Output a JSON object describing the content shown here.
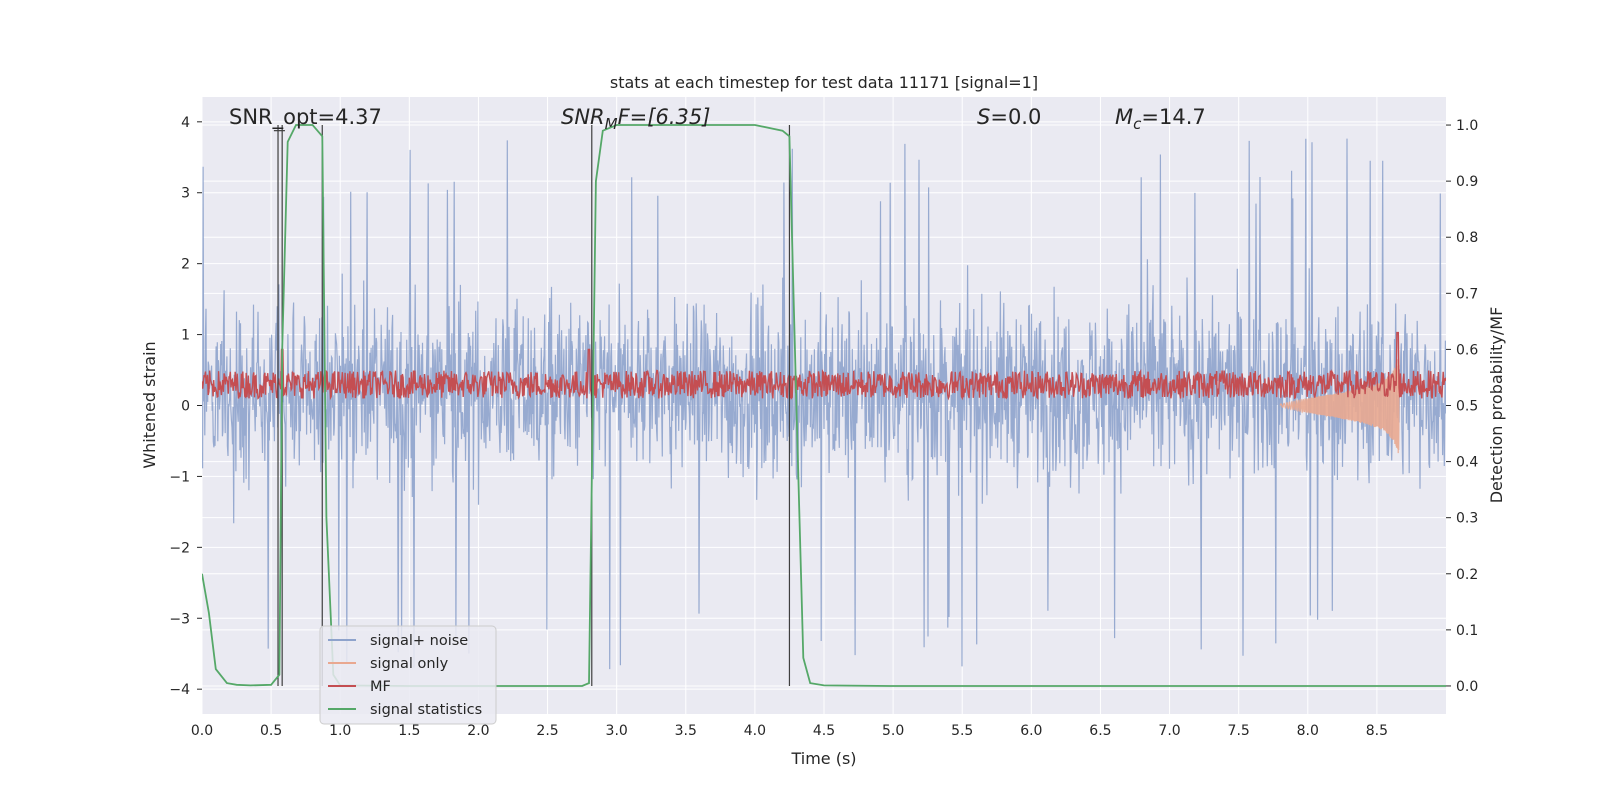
{
  "chart_data": {
    "type": "line",
    "title": "stats at each timestep for test data 11171 [signal=1]",
    "xlabel": "Time (s)",
    "ylabel": "Whitened strain",
    "y2label": "Detection probability/MF",
    "xlim": [
      0.0,
      9.0
    ],
    "ylim": [
      -4.35,
      4.35
    ],
    "y2lim": [
      -0.05,
      1.05
    ],
    "xticks": [
      "0.0",
      "0.5",
      "1.0",
      "1.5",
      "2.0",
      "2.5",
      "3.0",
      "3.5",
      "4.0",
      "4.5",
      "5.0",
      "5.5",
      "6.0",
      "6.5",
      "7.0",
      "7.5",
      "8.0",
      "8.5"
    ],
    "yticks": [
      "−4",
      "−3",
      "−2",
      "−1",
      "0",
      "1",
      "2",
      "3",
      "4"
    ],
    "y2ticks": [
      "0.0",
      "0.1",
      "0.2",
      "0.3",
      "0.4",
      "0.5",
      "0.6",
      "0.7",
      "0.8",
      "0.9",
      "1.0"
    ],
    "annotations": {
      "snr_opt": "SNR_opt=4.37",
      "snr_mf_main": "SNR",
      "snr_mf_sub": "M",
      "snr_mf_rest": "F=[6.35]",
      "s_main": "S",
      "s_rest": "=0.0",
      "mc_main": "M",
      "mc_sub": "c",
      "mc_rest": "=14.7"
    },
    "legend": {
      "position": "lower-left",
      "entries": [
        "signal+ noise",
        "signal only",
        "MF",
        "signal statistics"
      ]
    },
    "colors": {
      "noise": "#8ea3cc",
      "signal_only": "#e9a890",
      "mf": "#c44e52",
      "stats": "#55a868",
      "detection_bars": "#3f3f3f",
      "axes_bg": "#eaeaf2",
      "grid": "#ffffff"
    },
    "series": [
      {
        "name": "signal+ noise",
        "axis": "left",
        "description": "white noise amplitude roughly ±2 with spikes to about ±4",
        "envelope_typical": [
          -1.6,
          2.0
        ],
        "extremes": [
          -4.0,
          3.95
        ]
      },
      {
        "name": "signal only",
        "axis": "left",
        "description": "chirp growing from 7.8 s, peaking near 8.65 s",
        "x": [
          7.8,
          8.0,
          8.2,
          8.4,
          8.55,
          8.62,
          8.66
        ],
        "envelope": [
          0.02,
          0.1,
          0.17,
          0.25,
          0.35,
          0.5,
          0.7
        ]
      },
      {
        "name": "MF",
        "axis": "right",
        "description": "matched-filter output fluctuating around 0.53, spikes at 0.58 s, 2.8 s and 8.65 s",
        "baseline": 0.535,
        "spikes": [
          {
            "x": 0.58,
            "y": 0.6
          },
          {
            "x": 2.8,
            "y": 0.6
          },
          {
            "x": 8.65,
            "y": 0.63
          }
        ]
      },
      {
        "name": "signal statistics",
        "axis": "right",
        "x": [
          0.0,
          0.05,
          0.1,
          0.18,
          0.25,
          0.35,
          0.5,
          0.56,
          0.58,
          0.62,
          0.68,
          0.8,
          0.87,
          0.9,
          0.95,
          1.0,
          1.5,
          2.0,
          2.5,
          2.75,
          2.8,
          2.85,
          2.9,
          3.0,
          3.5,
          4.0,
          4.2,
          4.25,
          4.3,
          4.35,
          4.4,
          4.5,
          5.0,
          6.0,
          7.0,
          8.0,
          9.0
        ],
        "y": [
          0.2,
          0.13,
          0.03,
          0.005,
          0.002,
          0.001,
          0.002,
          0.02,
          0.6,
          0.97,
          1.0,
          1.0,
          0.98,
          0.3,
          0.02,
          0.001,
          0.0,
          0.0,
          0.0,
          0.0,
          0.005,
          0.9,
          0.99,
          1.0,
          1.0,
          1.0,
          0.99,
          0.98,
          0.5,
          0.05,
          0.005,
          0.001,
          0.0,
          0.0,
          0.0,
          0.0,
          0.0
        ]
      },
      {
        "name": "detection markers",
        "axis": "right",
        "description": "vertical lines marking detected signal windows",
        "x": [
          0.55,
          0.58,
          0.87,
          2.82,
          4.25
        ]
      }
    ]
  }
}
